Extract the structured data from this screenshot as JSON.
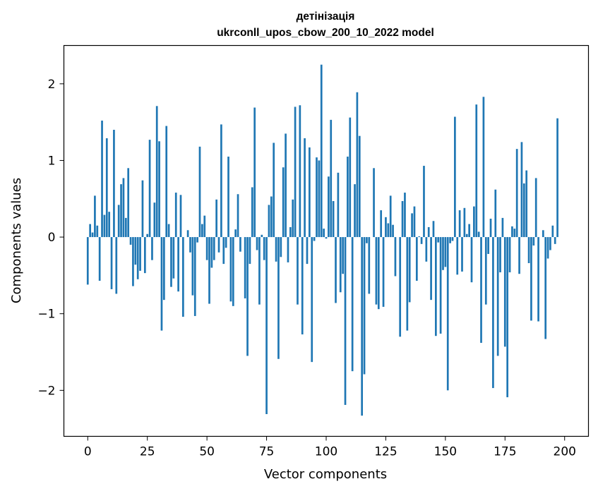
{
  "chart_data": {
    "type": "bar",
    "title": "детінізація\nukrconll_upos_cbow_200_10_2022 model",
    "title_lines": [
      "детінізація",
      "ukrconll_upos_cbow_200_10_2022 model"
    ],
    "xlabel": "Vector components",
    "ylabel": "Components values",
    "xlim": [
      -10,
      210
    ],
    "ylim": [
      -2.6,
      2.5
    ],
    "xticks": [
      0,
      25,
      50,
      75,
      100,
      125,
      150,
      175,
      200
    ],
    "yticks": [
      -2,
      -1,
      0,
      1,
      2
    ],
    "ytick_labels": [
      "−2",
      "−1",
      "0",
      "1",
      "2"
    ],
    "grid": false,
    "color": "#1f77b4",
    "series": [
      {
        "values": [
          -0.62,
          0.17,
          0.06,
          0.54,
          0.15,
          -0.57,
          1.52,
          0.29,
          1.29,
          0.33,
          -0.68,
          1.4,
          -0.74,
          0.42,
          0.69,
          0.77,
          0.25,
          0.9,
          -0.1,
          -0.64,
          -0.36,
          -0.55,
          -0.44,
          0.74,
          -0.47,
          0.04,
          1.27,
          -0.3,
          0.45,
          1.71,
          1.25,
          -1.22,
          -0.82,
          1.45,
          0.17,
          -0.65,
          -0.54,
          0.58,
          -0.71,
          0.55,
          -1.04,
          0.0,
          0.09,
          -0.2,
          -0.76,
          -1.03,
          -0.07,
          1.18,
          0.17,
          0.28,
          -0.3,
          -0.87,
          -0.4,
          -0.3,
          0.49,
          -0.2,
          1.47,
          -0.35,
          -0.14,
          1.05,
          -0.84,
          -0.9,
          0.1,
          0.56,
          -0.19,
          0.0,
          -0.8,
          -1.55,
          -0.35,
          0.65,
          1.69,
          -0.17,
          -0.88,
          0.03,
          -0.3,
          -2.31,
          0.42,
          0.53,
          1.23,
          -0.32,
          -1.59,
          -0.26,
          0.91,
          1.35,
          -0.33,
          0.13,
          0.49,
          1.7,
          -0.88,
          1.72,
          -1.27,
          1.29,
          -0.35,
          1.17,
          -1.63,
          -0.05,
          1.04,
          1.0,
          2.25,
          0.11,
          -0.02,
          0.79,
          1.53,
          0.47,
          -0.86,
          0.84,
          -0.72,
          -0.48,
          -2.19,
          1.05,
          1.56,
          -1.75,
          0.69,
          1.89,
          1.32,
          -2.33,
          -1.79,
          -0.08,
          -0.74,
          0.0,
          0.9,
          -0.88,
          -0.94,
          0.35,
          -0.91,
          0.26,
          0.18,
          0.54,
          0.16,
          -0.51,
          0.0,
          -1.3,
          0.47,
          0.58,
          -1.22,
          -0.85,
          0.31,
          0.4,
          -0.57,
          0.01,
          -0.09,
          0.93,
          -0.32,
          0.13,
          -0.82,
          0.21,
          -1.29,
          -0.07,
          -1.26,
          -0.43,
          -0.39,
          -2.0,
          -0.08,
          -0.05,
          1.57,
          -0.49,
          0.35,
          -0.45,
          0.38,
          0.04,
          0.17,
          -0.59,
          0.4,
          1.73,
          0.07,
          -1.38,
          1.83,
          -0.88,
          -0.22,
          0.24,
          -1.97,
          0.62,
          -1.55,
          -0.46,
          0.25,
          -1.43,
          -2.09,
          -0.46,
          0.14,
          0.11,
          1.15,
          -0.48,
          1.24,
          0.7,
          0.87,
          -0.34,
          -1.09,
          -0.11,
          0.77,
          -1.1,
          0.0,
          0.09,
          -1.33,
          -0.28,
          -0.17,
          0.15,
          -0.09,
          1.55
        ]
      }
    ]
  }
}
